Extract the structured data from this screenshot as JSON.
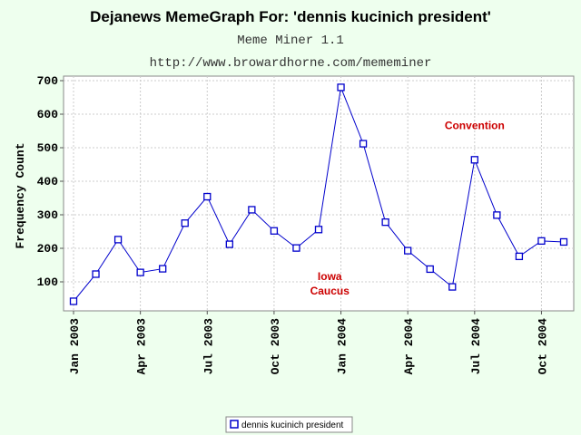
{
  "colors": {
    "background": "#eeffee",
    "plot_background": "#ffffff",
    "series": "#0000cc",
    "annotation": "#cc0000",
    "grid": "#cccccc"
  },
  "chart_data": {
    "type": "line",
    "title": "Dejanews MemeGraph For: 'dennis kucinich president'",
    "subtitles": [
      "Meme Miner 1.1",
      "http://www.browardhorne.com/mememiner"
    ],
    "xlabel": "",
    "ylabel": "Frequency Count",
    "ylim": [
      10,
      700
    ],
    "yticks": [
      100,
      200,
      300,
      400,
      500,
      600,
      700
    ],
    "x_ticks": [
      {
        "index": 0,
        "label": "Jan 2003"
      },
      {
        "index": 3,
        "label": "Apr 2003"
      },
      {
        "index": 6,
        "label": "Jul 2003"
      },
      {
        "index": 9,
        "label": "Oct 2003"
      },
      {
        "index": 12,
        "label": "Jan 2004"
      },
      {
        "index": 15,
        "label": "Apr 2004"
      },
      {
        "index": 18,
        "label": "Jul 2004"
      },
      {
        "index": 21,
        "label": "Oct 2004"
      }
    ],
    "grid": true,
    "legend_position": "bottom",
    "series": [
      {
        "name": "dennis kucinich president",
        "marker": "square",
        "values": [
          42,
          123,
          226,
          128,
          139,
          275,
          354,
          212,
          315,
          252,
          201,
          256,
          680,
          512,
          278,
          193,
          138,
          85,
          464,
          299,
          176,
          222,
          219
        ]
      }
    ],
    "annotations": [
      {
        "lines": [
          "Iowa",
          "Caucus"
        ],
        "index": 11.5,
        "y": 105
      },
      {
        "lines": [
          "Convention"
        ],
        "index": 18.0,
        "y": 555
      }
    ]
  }
}
